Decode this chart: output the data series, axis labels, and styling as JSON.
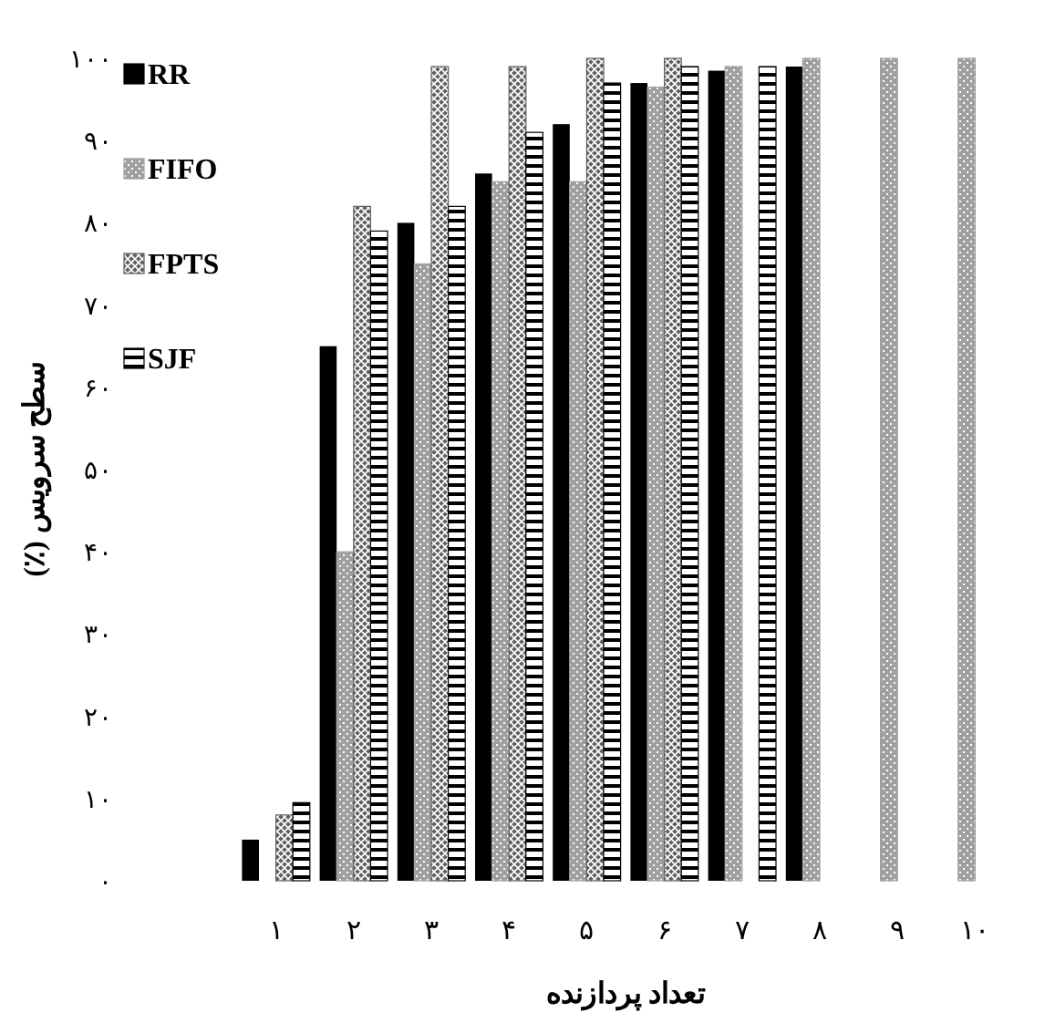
{
  "chart_data": {
    "type": "bar",
    "xlabel": "تعداد پردازنده",
    "ylabel": "سطح سرویس (٪)",
    "categories": [
      "۱",
      "۲",
      "۳",
      "۴",
      "۵",
      "۶",
      "۷",
      "۸",
      "۹",
      "۱۰"
    ],
    "series": [
      {
        "name": "RR",
        "color": "#000000",
        "values": [
          5,
          65,
          80,
          86,
          92,
          97,
          98.5,
          99,
          null,
          null
        ]
      },
      {
        "name": "FIFO",
        "color": "#a0a0a0",
        "values": [
          null,
          40,
          75,
          85,
          85,
          96.5,
          99,
          100,
          100,
          100
        ]
      },
      {
        "name": "FPTS",
        "color": "#606060",
        "values": [
          8,
          82,
          99,
          99,
          100,
          100,
          null,
          null,
          null,
          null
        ]
      },
      {
        "name": "SJF",
        "color": "#000000",
        "values": [
          9.5,
          79,
          82,
          91,
          97,
          99,
          99,
          null,
          null,
          null
        ]
      }
    ],
    "ylim": [
      0,
      100
    ],
    "yticks": [
      {
        "value": 0,
        "label": "۰"
      },
      {
        "value": 10,
        "label": "۱۰"
      },
      {
        "value": 20,
        "label": "۲۰"
      },
      {
        "value": 30,
        "label": "۳۰"
      },
      {
        "value": 40,
        "label": "۴۰"
      },
      {
        "value": 50,
        "label": "۵۰"
      },
      {
        "value": 60,
        "label": "۶۰"
      },
      {
        "value": 70,
        "label": "۷۰"
      },
      {
        "value": 80,
        "label": "۸۰"
      },
      {
        "value": 90,
        "label": "۹۰"
      },
      {
        "value": 100,
        "label": "۱۰۰"
      }
    ],
    "grid": false,
    "legend": "top left"
  }
}
